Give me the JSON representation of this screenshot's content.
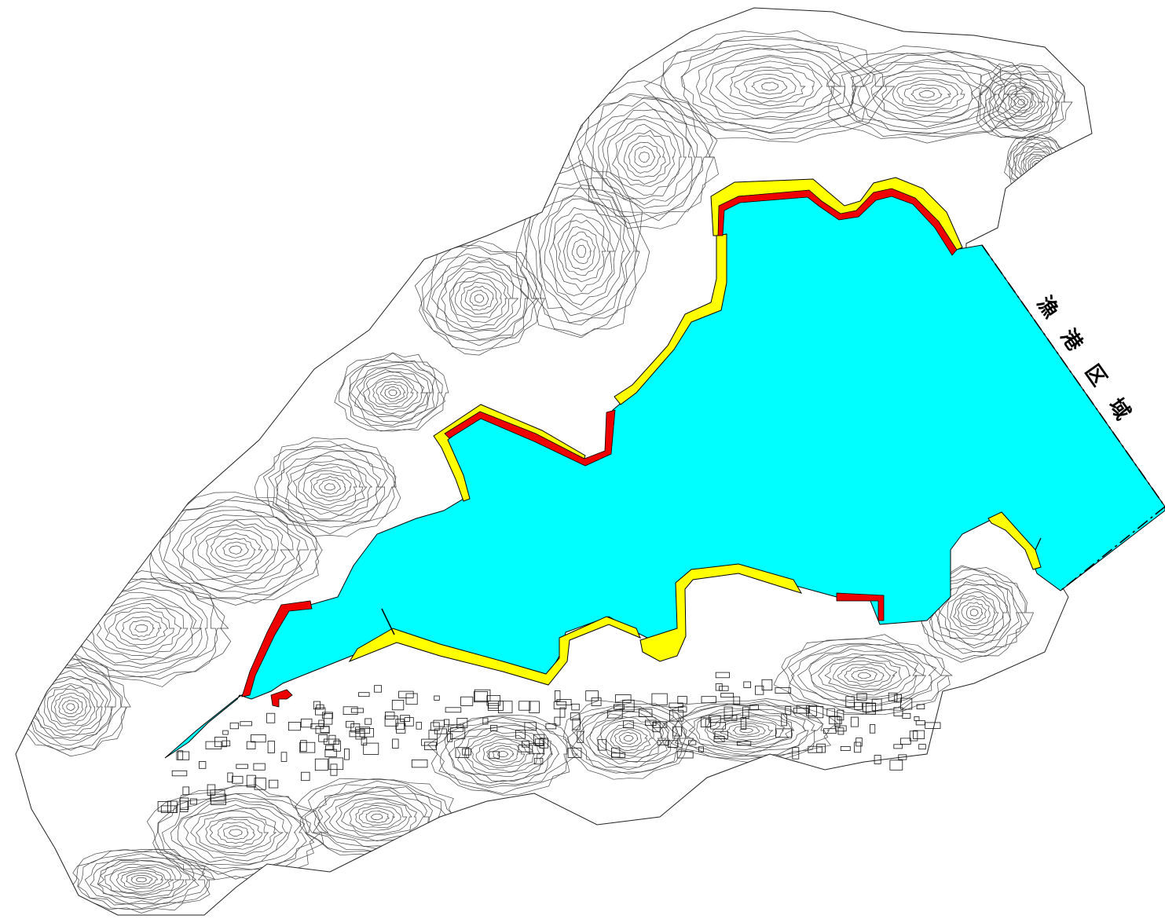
{
  "map": {
    "area_label_chars": [
      "漁",
      "港",
      "区",
      "域"
    ],
    "colors": {
      "water": "#00ffff",
      "boundary_line": "#000000",
      "red_facility": "#ee0000",
      "yellow_facility": "#ffff00",
      "contour": "#444444",
      "background": "#ffffff"
    }
  }
}
